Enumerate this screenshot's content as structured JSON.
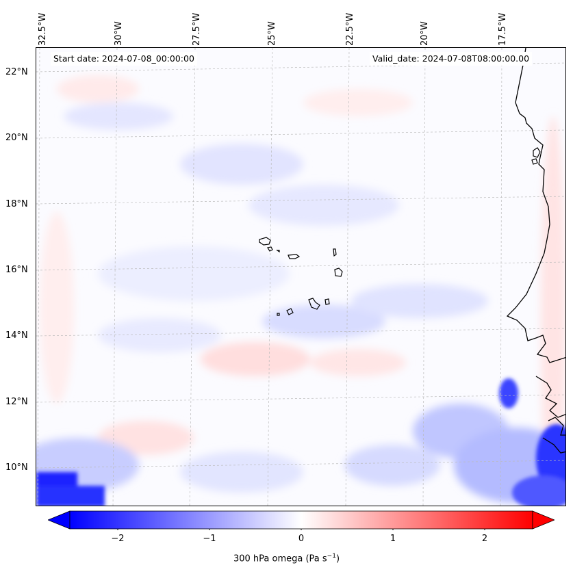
{
  "header": {
    "start_date": "Start date: 2024-07-08_00:00:00",
    "valid_date": "Valid_date: 2024-07-08T08:00:00.00"
  },
  "map": {
    "lon_labels": [
      "32.5°W",
      "30°W",
      "27.5°W",
      "25°W",
      "22.5°W",
      "20°W",
      "17.5°W"
    ],
    "lat_labels": [
      "22°N",
      "20°N",
      "18°N",
      "16°N",
      "14°N",
      "12°N",
      "10°N"
    ],
    "background_color": "#fbfbff",
    "coastline_color": "#000000"
  },
  "colorbar": {
    "ticks": [
      "−2",
      "−1",
      "0",
      "1",
      "2"
    ],
    "label": "300 hPa omega (Pa s",
    "label_superscript": "−1",
    "label_suffix": ")",
    "min_color": "#0000ff",
    "mid_color": "#ffffff",
    "max_color": "#ff0000"
  }
}
